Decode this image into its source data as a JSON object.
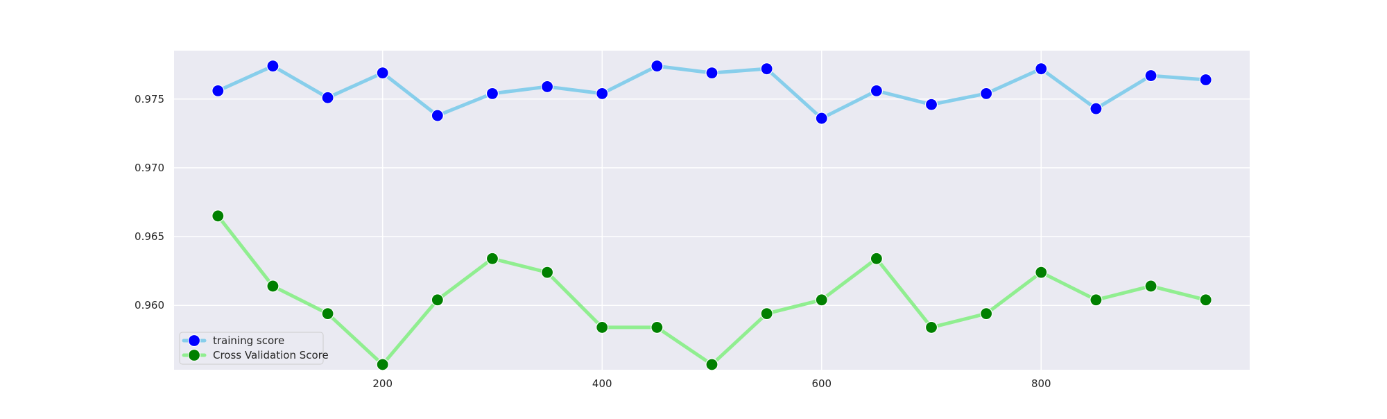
{
  "chart_data": {
    "type": "line",
    "title": "",
    "xlabel": "",
    "ylabel": "",
    "xlim": [
      10,
      990
    ],
    "ylim": [
      0.95532,
      0.97852
    ],
    "x_ticks": [
      200,
      400,
      600,
      800
    ],
    "y_ticks": [
      0.96,
      0.965,
      0.97,
      0.975
    ],
    "x_tick_labels": [
      "200",
      "400",
      "600",
      "800"
    ],
    "y_tick_labels": [
      "0.960",
      "0.965",
      "0.970",
      "0.975"
    ],
    "grid": true,
    "legend_position": "lower-left",
    "colors": {
      "plot_background": "#eaeaf2",
      "grid": "#ffffff",
      "training_line": "#87ceeb",
      "training_marker": "#0000ff",
      "cv_line": "#90ee90",
      "cv_marker": "#008000"
    },
    "x": [
      50,
      100,
      150,
      200,
      250,
      300,
      350,
      400,
      450,
      500,
      550,
      600,
      650,
      700,
      750,
      800,
      850,
      900,
      950
    ],
    "series": [
      {
        "name": "training score",
        "values": [
          0.9756,
          0.9774,
          0.9751,
          0.9769,
          0.9738,
          0.9754,
          0.9759,
          0.9754,
          0.9774,
          0.9769,
          0.9772,
          0.9736,
          0.9756,
          0.9746,
          0.9754,
          0.9772,
          0.9743,
          0.9767,
          0.9764
        ]
      },
      {
        "name": "Cross Validation Score",
        "values": [
          0.9665,
          0.9614,
          0.9594,
          0.9557,
          0.9604,
          0.9634,
          0.9624,
          0.9584,
          0.9584,
          0.9557,
          0.9594,
          0.9604,
          0.9634,
          0.9584,
          0.9594,
          0.9624,
          0.9604,
          0.9614,
          0.9604
        ]
      }
    ]
  }
}
